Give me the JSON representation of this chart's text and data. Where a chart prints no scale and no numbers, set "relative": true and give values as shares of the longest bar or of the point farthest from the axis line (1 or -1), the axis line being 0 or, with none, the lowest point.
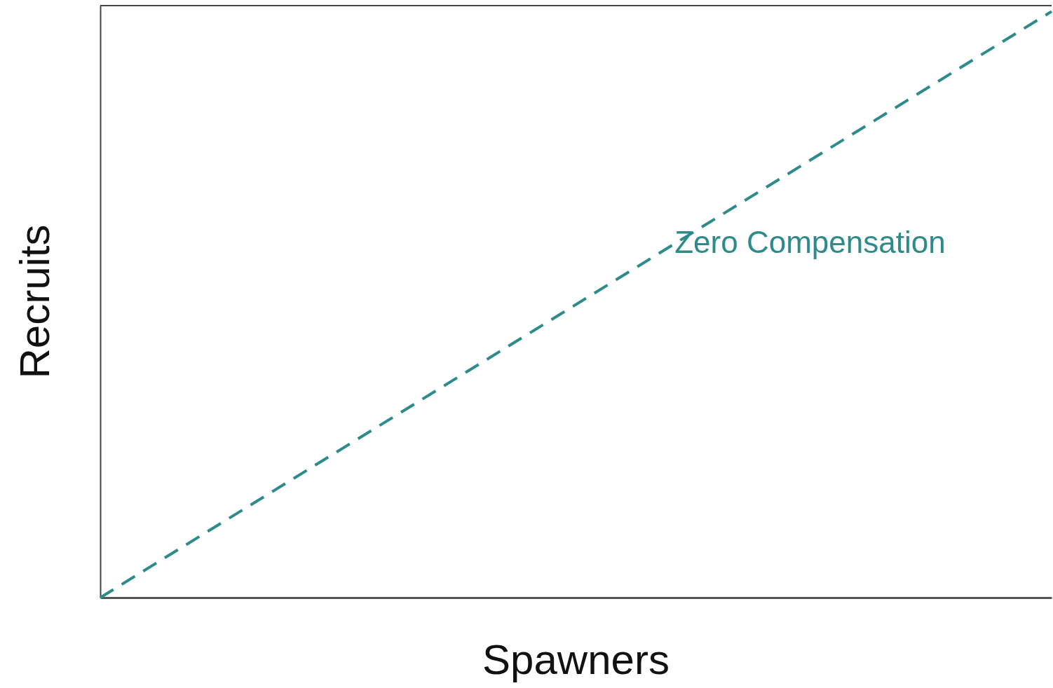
{
  "chart_data": {
    "type": "line",
    "xlabel": "Spawners",
    "ylabel": "Recruits",
    "relative": true,
    "line_style": "dashed",
    "categories": [
      null,
      null
    ],
    "series": [
      {
        "name": "Zero Compensation",
        "color": "#2e8b8b",
        "values": [
          0,
          1
        ]
      }
    ]
  }
}
